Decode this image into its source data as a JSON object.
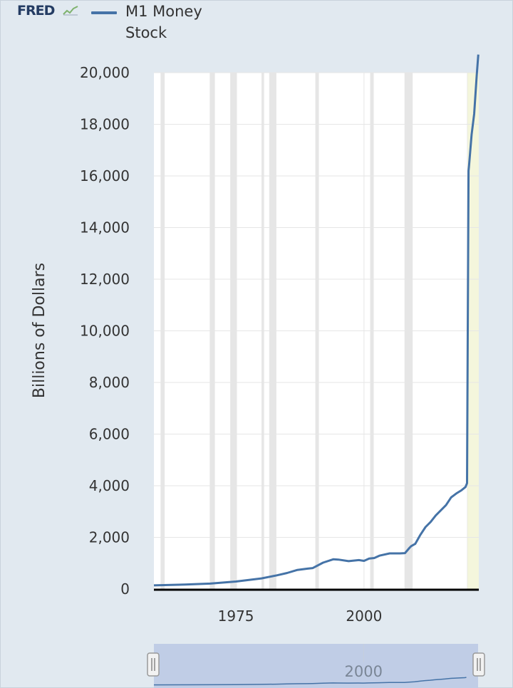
{
  "brand": {
    "logo_text": "FRED",
    "logo_icon": "trend-line-icon"
  },
  "colors": {
    "background": "#e1e9f0",
    "plot_background": "#ffffff",
    "series_line": "#4573a7",
    "recession_band": "#e6e6e6",
    "forecast_band": "#f3f5d8",
    "navigator_fill": "#bccae4"
  },
  "chart_data": {
    "type": "line",
    "title": "",
    "xlabel": "",
    "ylabel": "Billions of Dollars",
    "xlim": [
      1959,
      2022.4
    ],
    "ylim": [
      0,
      20000
    ],
    "y_ticks": [
      0,
      2000,
      4000,
      6000,
      8000,
      10000,
      12000,
      14000,
      16000,
      18000,
      20000
    ],
    "y_tick_labels": [
      "0",
      "2,000",
      "4,000",
      "6,000",
      "8,000",
      "10,000",
      "12,000",
      "14,000",
      "16,000",
      "18,000",
      "20,000"
    ],
    "x_ticks": [
      1975,
      2000
    ],
    "x_tick_labels": [
      "1975",
      "2000"
    ],
    "grid": true,
    "legend_position": "top-left",
    "recession_periods": [
      [
        1960.3,
        1961.1
      ],
      [
        1969.9,
        1970.9
      ],
      [
        1973.9,
        1975.2
      ],
      [
        1980.0,
        1980.5
      ],
      [
        1981.5,
        1982.9
      ],
      [
        1990.5,
        1991.2
      ],
      [
        2001.2,
        2001.9
      ],
      [
        2007.9,
        2009.5
      ],
      [
        2020.1,
        2020.4
      ]
    ],
    "shaded_region_end": [
      2020.2,
      2022.4
    ],
    "series": [
      {
        "name": "M1 Money Stock",
        "x": [
          1959,
          1965,
          1970,
          1975,
          1980,
          1983,
          1985,
          1987,
          1989,
          1990,
          1992,
          1994,
          1995,
          1997,
          1999,
          2000,
          2001,
          2002,
          2003,
          2005,
          2007,
          2008,
          2008.9,
          2009.2,
          2010,
          2011,
          2012,
          2013,
          2014,
          2015,
          2016,
          2017,
          2018,
          2019,
          2019.8,
          2020.1,
          2020.25,
          2020.4,
          2020.5,
          2021,
          2021.5,
          2022,
          2022.3
        ],
        "y": [
          140,
          170,
          210,
          290,
          410,
          530,
          620,
          740,
          790,
          810,
          1020,
          1150,
          1140,
          1080,
          1120,
          1090,
          1180,
          1200,
          1290,
          1380,
          1380,
          1390,
          1600,
          1660,
          1750,
          2100,
          2400,
          2600,
          2850,
          3050,
          3250,
          3550,
          3700,
          3820,
          3950,
          4100,
          10000,
          16200,
          16400,
          17600,
          18400,
          19900,
          20700
        ]
      }
    ],
    "navigator": {
      "x_tick_labels": [
        "2000"
      ]
    }
  }
}
